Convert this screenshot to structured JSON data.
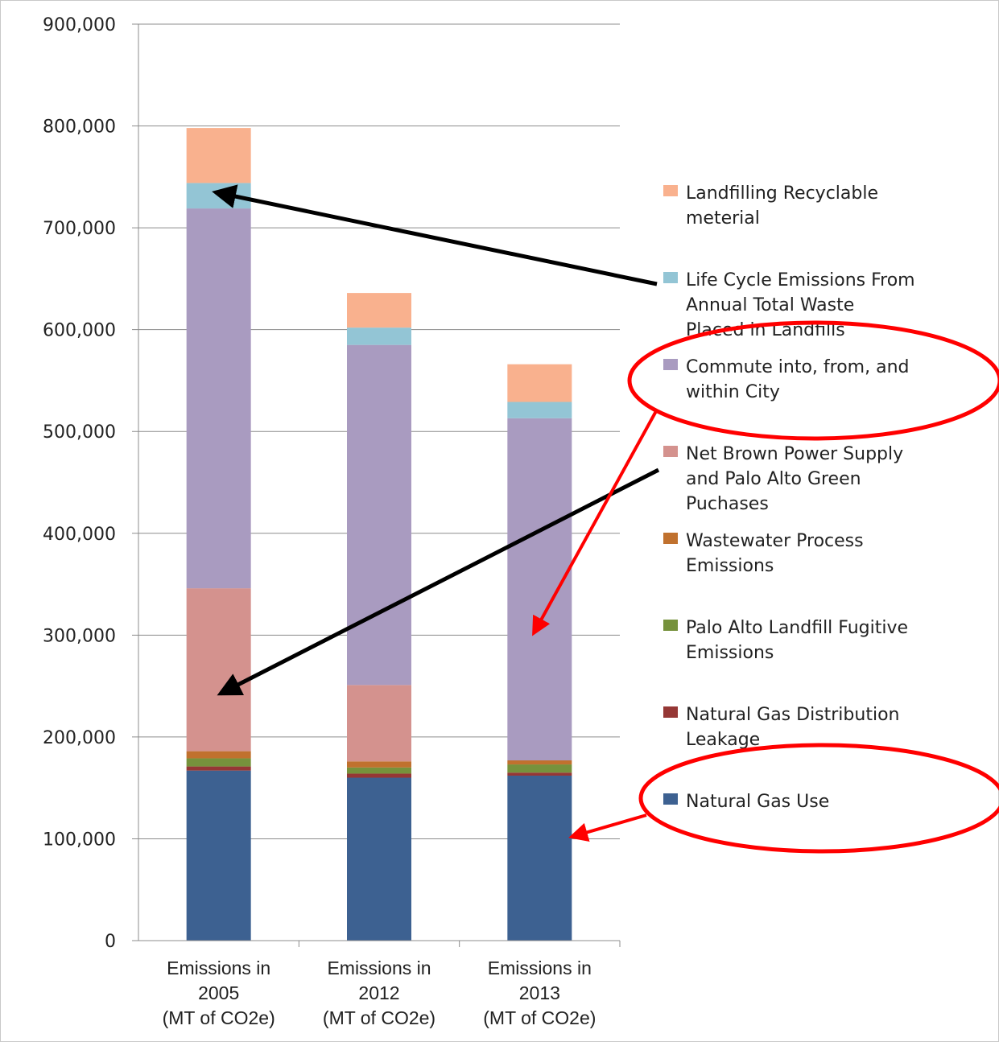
{
  "chart_data": {
    "type": "bar",
    "stacked": true,
    "title": "",
    "xlabel": "",
    "ylabel": "",
    "ylim": [
      0,
      900000
    ],
    "yticks": [
      "0",
      "100,000",
      "200,000",
      "300,000",
      "400,000",
      "500,000",
      "600,000",
      "700,000",
      "800,000",
      "900,000"
    ],
    "categories": [
      [
        "Emissions in",
        "2005",
        "(MT of CO2e)"
      ],
      [
        "Emissions in",
        "2012",
        "(MT of CO2e)"
      ],
      [
        "Emissions in",
        "2013",
        "(MT of CO2e)"
      ]
    ],
    "grid": true,
    "legend_position": "right",
    "series": [
      {
        "name": [
          "Natural Gas Use"
        ],
        "color": "#3d6191",
        "values": [
          167000,
          160000,
          162000
        ]
      },
      {
        "name": [
          "Natural Gas Distribution",
          "Leakage"
        ],
        "color": "#953735",
        "values": [
          4000,
          4000,
          3000
        ]
      },
      {
        "name": [
          "Palo Alto Landfill Fugitive",
          "Emissions"
        ],
        "color": "#76923c",
        "values": [
          8000,
          6000,
          8000
        ]
      },
      {
        "name": [
          "Wastewater Process",
          "Emissions"
        ],
        "color": "#c0712e",
        "values": [
          7000,
          6000,
          4000
        ]
      },
      {
        "name": [
          "Net Brown Power Supply",
          "and Palo Alto Green",
          "Puchases"
        ],
        "color": "#d4928e",
        "values": [
          160000,
          75000,
          0
        ]
      },
      {
        "name": [
          "Commute into, from, and",
          "within City"
        ],
        "color": "#a99bc0",
        "values": [
          373000,
          334000,
          336000
        ]
      },
      {
        "name": [
          "Life Cycle Emissions From",
          "Annual Total Waste",
          "Placed in Landfills"
        ],
        "color": "#93c5d5",
        "values": [
          25000,
          17000,
          16000
        ]
      },
      {
        "name": [
          "Landfilling Recyclable",
          "meterial"
        ],
        "color": "#f9b18e",
        "values": [
          54000,
          34000,
          37000
        ]
      }
    ],
    "annotations": {
      "black_arrow_color": "#000000",
      "red_arrow_color": "#ff0000",
      "red_circles": [
        "Commute into, from, and within City",
        "Natural Gas Use"
      ]
    }
  }
}
